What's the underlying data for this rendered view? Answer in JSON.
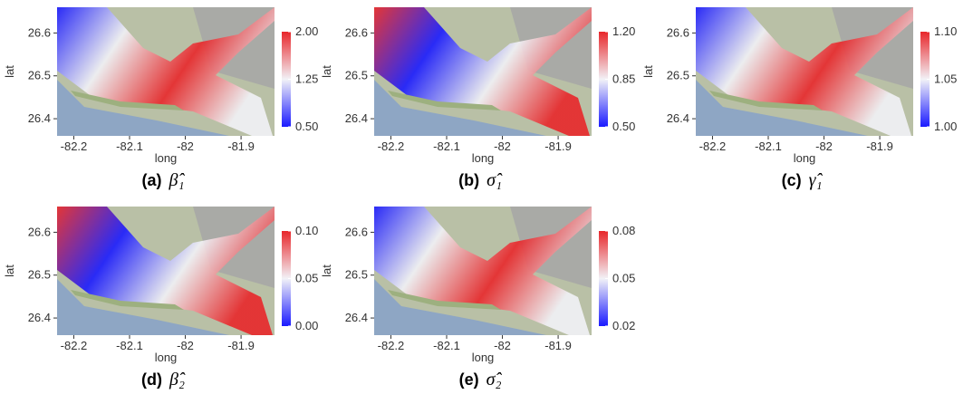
{
  "chart_data": [
    {
      "type": "map",
      "xlabel": "long",
      "ylabel": "lat",
      "xlim": [
        -82.23,
        -81.84
      ],
      "ylim": [
        26.36,
        26.66
      ],
      "xticks": [
        -82.2,
        -82.1,
        -82.0,
        -81.9
      ],
      "yticks": [
        26.4,
        26.5,
        26.6
      ],
      "colorbar": {
        "lim": [
          0.5,
          2.0
        ],
        "ticks": [
          {
            "value": 0.5,
            "label": "0.50"
          },
          1.25,
          {
            "value": 2.0,
            "label": "2.00"
          }
        ],
        "colors": [
          "#1a1aff",
          "#f2f2f7",
          "#e8262a"
        ]
      },
      "caption": {
        "label": "(a)",
        "symbol": "β̂₁"
      }
    },
    {
      "type": "map",
      "xlabel": "long",
      "ylabel": "lat",
      "xlim": [
        -82.23,
        -81.84
      ],
      "ylim": [
        26.36,
        26.66
      ],
      "xticks": [
        -82.2,
        -82.1,
        -82.0,
        -81.9
      ],
      "yticks": [
        26.4,
        26.5,
        26.6
      ],
      "colorbar": {
        "lim": [
          0.5,
          1.2
        ],
        "ticks": [
          {
            "value": 0.5,
            "label": "0.50"
          },
          0.85,
          {
            "value": 1.2,
            "label": "1.20"
          }
        ],
        "colors": [
          "#1a1aff",
          "#f2f2f7",
          "#e8262a"
        ]
      },
      "caption": {
        "label": "(b)",
        "symbol": "σ̂₁"
      }
    },
    {
      "type": "map",
      "xlabel": "long",
      "ylabel": "lat",
      "xlim": [
        -82.23,
        -81.84
      ],
      "ylim": [
        26.36,
        26.66
      ],
      "xticks": [
        -82.2,
        -82.1,
        -82.0,
        -81.9
      ],
      "yticks": [
        26.4,
        26.5,
        26.6
      ],
      "colorbar": {
        "lim": [
          1.0,
          1.1
        ],
        "ticks": [
          {
            "value": 1.0,
            "label": "1.00"
          },
          1.05,
          {
            "value": 1.1,
            "label": "1.10"
          }
        ],
        "colors": [
          "#1a1aff",
          "#f2f2f7",
          "#e8262a"
        ]
      },
      "caption": {
        "label": "(c)",
        "symbol": "γ̂₁"
      }
    },
    {
      "type": "map",
      "xlabel": "long",
      "ylabel": "lat",
      "xlim": [
        -82.23,
        -81.84
      ],
      "ylim": [
        26.36,
        26.66
      ],
      "xticks": [
        -82.2,
        -82.1,
        -82.0,
        -81.9
      ],
      "yticks": [
        26.4,
        26.5,
        26.6
      ],
      "colorbar": {
        "lim": [
          0.0,
          0.1
        ],
        "ticks": [
          {
            "value": 0.0,
            "label": "0.00"
          },
          0.05,
          {
            "value": 0.1,
            "label": "0.10"
          }
        ],
        "colors": [
          "#1a1aff",
          "#f2f2f7",
          "#e8262a"
        ]
      },
      "caption": {
        "label": "(d)",
        "symbol": "β̂₂"
      }
    },
    {
      "type": "map",
      "xlabel": "long",
      "ylabel": "lat",
      "xlim": [
        -82.23,
        -81.84
      ],
      "ylim": [
        26.36,
        26.66
      ],
      "xticks": [
        -82.2,
        -82.1,
        -82.0,
        -81.9
      ],
      "yticks": [
        26.4,
        26.5,
        26.6
      ],
      "colorbar": {
        "lim": [
          0.02,
          0.08
        ],
        "ticks": [
          0.02,
          0.05,
          0.08
        ],
        "colors": [
          "#1a1aff",
          "#f2f2f7",
          "#e8262a"
        ]
      },
      "caption": {
        "label": "(e)",
        "symbol": "σ̂₂"
      }
    }
  ]
}
